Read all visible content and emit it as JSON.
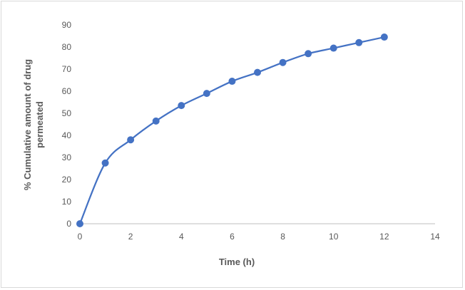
{
  "chart_data": {
    "type": "line",
    "title": "",
    "xlabel": "Time (h)",
    "ylabel_lines": [
      "% Cumulative amount of drug",
      "permeated"
    ],
    "xlim": [
      0,
      14
    ],
    "ylim": [
      0,
      90
    ],
    "x_ticks": [
      0,
      2,
      4,
      6,
      8,
      10,
      12,
      14
    ],
    "y_ticks": [
      0,
      10,
      20,
      30,
      40,
      50,
      60,
      70,
      80,
      90
    ],
    "grid": false,
    "smooth": true,
    "series": [
      {
        "color": "#4472c4",
        "x": [
          0,
          1,
          2,
          3,
          4,
          5,
          6,
          7,
          8,
          9,
          10,
          11,
          12
        ],
        "y": [
          0,
          27.5,
          38,
          46.5,
          53.5,
          59,
          64.5,
          68.5,
          73,
          77,
          79.5,
          82,
          84.5
        ]
      }
    ]
  }
}
